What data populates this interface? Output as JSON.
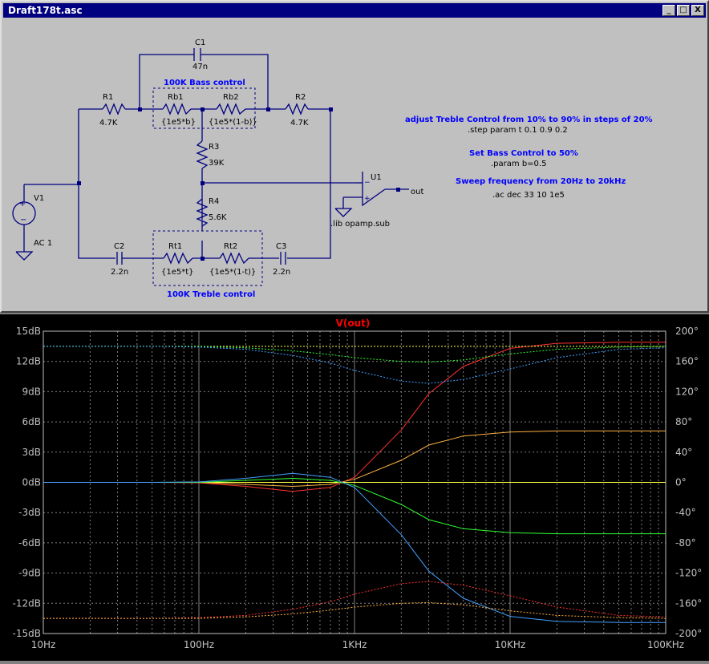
{
  "window": {
    "title": "Draft178t.asc",
    "buttons": [
      "_",
      "□",
      "X"
    ]
  },
  "schematic": {
    "components": {
      "c1": {
        "name": "C1",
        "value": "47n"
      },
      "r1": {
        "name": "R1",
        "value": "4.7K"
      },
      "rb1": {
        "name": "Rb1",
        "value": "{1e5*b}"
      },
      "rb2": {
        "name": "Rb2",
        "value": "{1e5*(1-b)}"
      },
      "r2": {
        "name": "R2",
        "value": "4.7K"
      },
      "r3": {
        "name": "R3",
        "value": "39K"
      },
      "r4": {
        "name": "R4",
        "value": "5.6K"
      },
      "v1": {
        "name": "V1",
        "value": "AC 1"
      },
      "u1": {
        "name": "U1"
      },
      "c2": {
        "name": "C2",
        "value": "2.2n"
      },
      "rt1": {
        "name": "Rt1",
        "value": "{1e5*t}"
      },
      "rt2": {
        "name": "Rt2",
        "value": "{1e5*(1-t)}"
      },
      "c3": {
        "name": "C3",
        "value": "2.2n"
      }
    },
    "labels": {
      "bass_box": "100K Bass control",
      "treble_box": "100K Treble control",
      "out_net": "out",
      "lib": ".lib opamp.sub"
    },
    "comments": {
      "treble_note": "adjust Treble Control from 10% to 90% in steps of 20%",
      "step_cmd": ".step param t 0.1 0.9 0.2",
      "bass_note": "Set Bass Control to 50%",
      "param_cmd": ".param b=0.5",
      "sweep_note": "Sweep frequency from 20Hz to 20kHz",
      "ac_cmd": ".ac dec 33 10 1e5"
    },
    "colors": {
      "wire": "#000080",
      "comment": "#0000ff",
      "directive": "#000000"
    }
  },
  "chart_data": {
    "type": "line",
    "title": "V(out)",
    "x_scale": "log",
    "xlim": [
      10,
      100000
    ],
    "x_ticks": [
      "10Hz",
      "100Hz",
      "1KHz",
      "10KHz",
      "100KHz"
    ],
    "ylim": [
      -15,
      15
    ],
    "y_ticks": [
      "15dB",
      "12dB",
      "9dB",
      "6dB",
      "3dB",
      "0dB",
      "-3dB",
      "-6dB",
      "-9dB",
      "-12dB",
      "-15dB"
    ],
    "y2lim": [
      -200,
      200
    ],
    "y2_ticks": [
      "200°",
      "160°",
      "120°",
      "80°",
      "40°",
      "0°",
      "-40°",
      "-80°",
      "-120°",
      "-160°",
      "-200°"
    ],
    "grid": true,
    "colors": {
      "background": "#000000",
      "grid": "#808080",
      "axis_text": "#c0c0c0",
      "title": "#ff0000"
    },
    "x": [
      10,
      20,
      50,
      100,
      200,
      400,
      700,
      1000,
      2000,
      3000,
      5000,
      10000,
      20000,
      50000,
      100000
    ],
    "series": [
      {
        "color": "#ff3030",
        "kind": "magnitude",
        "values": [
          0,
          0,
          0,
          -0.05,
          -0.4,
          -0.9,
          -0.5,
          0.5,
          5.2,
          8.8,
          11.5,
          13.3,
          13.8,
          13.9,
          13.9
        ]
      },
      {
        "color": "#ffb040",
        "kind": "magnitude",
        "values": [
          0,
          0,
          0,
          0,
          -0.2,
          -0.4,
          -0.2,
          0.3,
          2.2,
          3.7,
          4.6,
          5.0,
          5.1,
          5.1,
          5.1
        ]
      },
      {
        "color": "#ffff40",
        "kind": "magnitude",
        "values": [
          0,
          0,
          0,
          0,
          0,
          0,
          0,
          0,
          0,
          0,
          0,
          0,
          0,
          0,
          0
        ]
      },
      {
        "color": "#30ff30",
        "kind": "magnitude",
        "values": [
          0,
          0,
          0,
          0,
          0.2,
          0.4,
          0.2,
          -0.3,
          -2.2,
          -3.7,
          -4.6,
          -5.0,
          -5.1,
          -5.1,
          -5.1
        ]
      },
      {
        "color": "#40a0ff",
        "kind": "magnitude",
        "values": [
          0,
          0,
          0,
          0.05,
          0.4,
          0.9,
          0.5,
          -0.5,
          -5.2,
          -8.8,
          -11.5,
          -13.3,
          -13.8,
          -13.9,
          -13.9
        ]
      },
      {
        "color": "#ff3030",
        "kind": "phase",
        "values": [
          -180,
          -180,
          -180,
          -179,
          -176,
          -168,
          -158,
          -148,
          -134,
          -131,
          -136,
          -150,
          -165,
          -176,
          -178
        ]
      },
      {
        "color": "#ffb040",
        "kind": "phase",
        "values": [
          -180,
          -180,
          -180,
          -180,
          -178,
          -174,
          -169,
          -165,
          -160,
          -159,
          -162,
          -170,
          -176,
          -179,
          -180
        ]
      },
      {
        "color": "#ffff40",
        "kind": "phase",
        "values": [
          180,
          180,
          180,
          180,
          180,
          180,
          180,
          180,
          180,
          180,
          180,
          180,
          180,
          180,
          180
        ]
      },
      {
        "color": "#30ff30",
        "kind": "phase",
        "values": [
          180,
          180,
          180,
          180,
          178,
          174,
          169,
          165,
          160,
          159,
          162,
          170,
          176,
          179,
          180
        ]
      },
      {
        "color": "#40a0ff",
        "kind": "phase",
        "values": [
          180,
          180,
          180,
          179,
          176,
          168,
          158,
          148,
          134,
          131,
          136,
          150,
          165,
          176,
          178
        ]
      }
    ]
  }
}
